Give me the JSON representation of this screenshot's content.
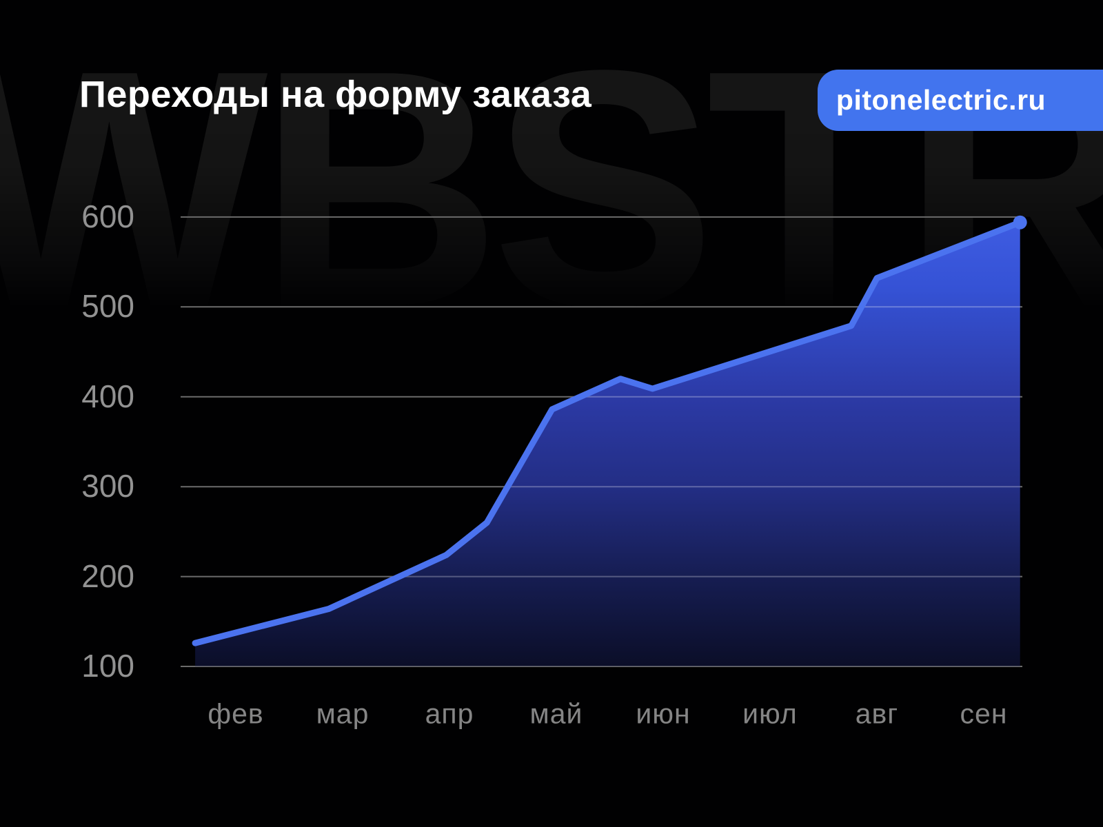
{
  "header": {
    "title": "Переходы на форму заказа",
    "badge_label": "pitonelectric.ru"
  },
  "watermark_text": "WBSTR",
  "colors": {
    "background": "#010102",
    "badge_blue": "#4274ee",
    "line_blue": "#4b73ef",
    "fill_top": "#3f5de3",
    "fill_bottom": "#0b0e28",
    "grid_gray": "#6b6b6b",
    "grid_in_fill": "rgba(255,255,255,0.28)",
    "y_label_gray": "#929292",
    "x_label_gray": "#858585",
    "watermark_gray": "#171717",
    "title_white": "#ffffff"
  },
  "chart_data": {
    "type": "area",
    "title": "Переходы на форму заказа",
    "categories": [
      "фев",
      "мар",
      "апр",
      "май",
      "июн",
      "июл",
      "авг",
      "сен"
    ],
    "monthly_values": [
      137,
      171,
      226,
      388,
      413,
      450,
      532,
      578
    ],
    "y_ticks": [
      600,
      500,
      400,
      300,
      200,
      100
    ],
    "ylim": [
      100,
      640
    ],
    "grid": "horizontal-only",
    "legend_position": "none",
    "series": [
      {
        "name": "Переходы на форму заказа",
        "points": [
          {
            "t": -0.38,
            "value": 126
          },
          {
            "t": 0.87,
            "value": 164
          },
          {
            "t": 1.97,
            "value": 224
          },
          {
            "t": 2.35,
            "value": 260
          },
          {
            "t": 2.96,
            "value": 386
          },
          {
            "t": 3.6,
            "value": 420
          },
          {
            "t": 3.9,
            "value": 409
          },
          {
            "t": 5.76,
            "value": 479
          },
          {
            "t": 6.0,
            "value": 532
          },
          {
            "t": 7.34,
            "value": 594
          }
        ]
      }
    ]
  }
}
